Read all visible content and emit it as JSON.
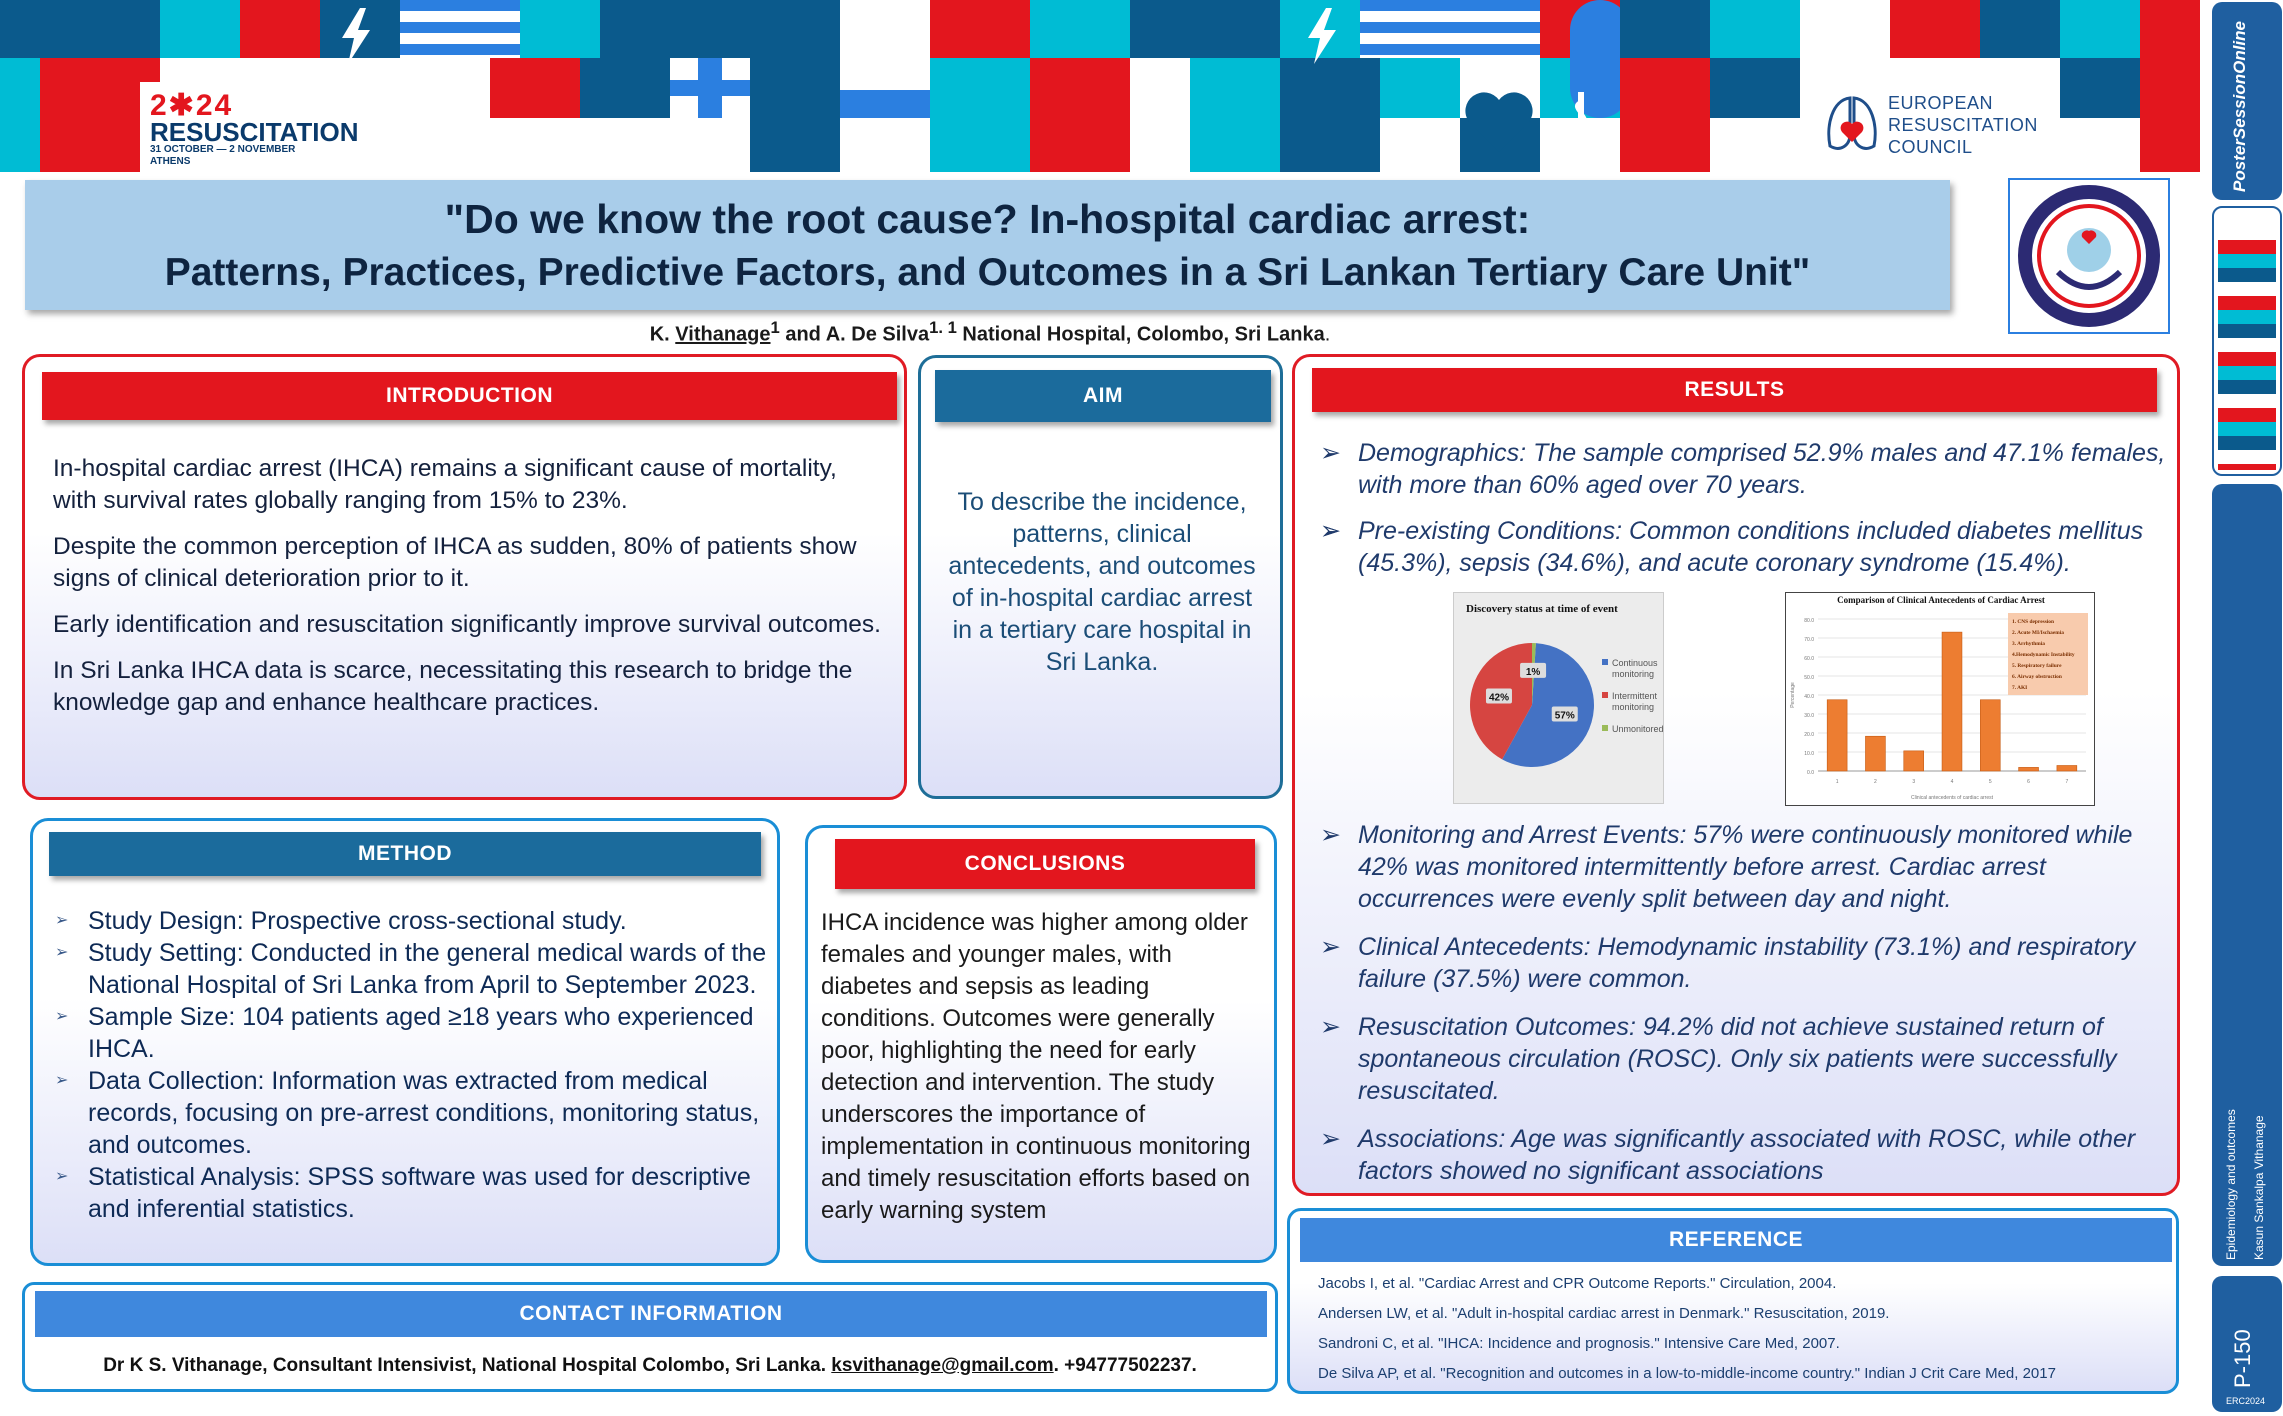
{
  "banner": {
    "year": "2✱24",
    "event": "RESUSCITATION",
    "dates": "31 OCTOBER — 2 NOVEMBER",
    "city": "ATHENS",
    "erc_lines": [
      "EUROPEAN",
      "RESUSCITATION",
      "COUNCIL"
    ]
  },
  "title": {
    "line1": "\"Do we know the root cause? In-hospital cardiac arrest:",
    "line2": "Patterns, Practices, Predictive Factors, and Outcomes in a Sri Lankan Tertiary Care Unit\""
  },
  "authors": {
    "a1": "K. ",
    "a1_name": "Vithanage",
    "a1_sup": "1",
    "mid": " and A. De Silva",
    "a2_sup": "1. ",
    "aff_sup": "1",
    "aff": " National Hospital, Colombo, Sri Lanka",
    "end": "."
  },
  "intro": {
    "header": "INTRODUCTION",
    "paras": [
      "In-hospital cardiac arrest (IHCA) remains a significant cause of mortality, with survival rates globally ranging from 15% to 23%.",
      "Despite the common perception of IHCA as sudden, 80% of patients show signs of clinical deterioration prior to it.",
      "Early identification and resuscitation significantly improve survival outcomes.",
      "In Sri Lanka IHCA data is scarce, necessitating this research to bridge the knowledge gap and enhance healthcare practices."
    ]
  },
  "aim": {
    "header": "AIM",
    "text": "To describe the incidence, patterns, clinical antecedents, and outcomes of in-hospital cardiac arrest in a tertiary care hospital in Sri Lanka."
  },
  "method": {
    "header": "METHOD",
    "items": [
      "Study Design: Prospective cross-sectional study.",
      "Study Setting: Conducted in the general medical wards of the National Hospital of Sri Lanka from April to September 2023.",
      "Sample Size: 104 patients aged ≥18 years who experienced IHCA.",
      "Data Collection: Information was extracted from medical records, focusing on pre-arrest conditions, monitoring status, and outcomes.",
      "Statistical Analysis: SPSS software was used for descriptive and inferential statistics."
    ]
  },
  "conclusions": {
    "header": "CONCLUSIONS",
    "text": "IHCA incidence was higher among older females and younger males, with diabetes and sepsis as leading conditions. Outcomes were generally poor, highlighting the need for early detection and intervention. The study underscores the importance of implementation in continuous monitoring and timely resuscitation efforts based on early warning system"
  },
  "results": {
    "header": "RESULTS",
    "items": [
      "Demographics: The sample comprised 52.9% males and 47.1% females, with more than 60% aged over 70 years.",
      "Pre-existing Conditions: Common conditions included diabetes mellitus (45.3%), sepsis (34.6%), and acute coronary syndrome (15.4%).",
      "Monitoring and Arrest Events: 57% were continuously monitored while 42% was monitored intermittently before arrest. Cardiac arrest occurrences were evenly split between day and night.",
      "Clinical Antecedents: Hemodynamic instability (73.1%) and respiratory failure (37.5%) were common.",
      "Resuscitation Outcomes: 94.2% did not achieve sustained return of spontaneous circulation (ROSC). Only six patients were successfully resuscitated.",
      "Associations: Age was significantly associated with ROSC, while other factors showed no significant associations"
    ],
    "marker": "➢"
  },
  "reference": {
    "header": "REFERENCE",
    "items": [
      "Jacobs I, et al. \"Cardiac Arrest and CPR Outcome Reports.\" Circulation, 2004.",
      "Andersen LW, et al. \"Adult in-hospital cardiac arrest in Denmark.\" Resuscitation, 2019.",
      "Sandroni C, et al. \"IHCA: Incidence and prognosis.\" Intensive Care Med, 2007.",
      "De Silva AP, et al. \"Recognition and outcomes in a low-to-middle-income country.\" Indian J Crit Care Med, 2017"
    ]
  },
  "contact": {
    "header": "CONTACT INFORMATION",
    "pre": "Dr K S. Vithanage, Consultant Intensivist, National Hospital Colombo, Sri Lanka. ",
    "email": "ksvithanage@gmail.com",
    "post": ". +94777502237."
  },
  "side": {
    "brand": "PosterSessionOnline",
    "category": "Epidemiology and outcomes",
    "author": "Kasun Sankalpa Vithanage",
    "code": "P-150",
    "erc": "ERC2024"
  },
  "chart_data": [
    {
      "type": "pie",
      "title": "Discovery status at time of event",
      "categories": [
        "Continuous monitoring",
        "Intermittent monitoring",
        "Unmonitored"
      ],
      "values": [
        57,
        42,
        1
      ],
      "data_labels": [
        "57%",
        "42%",
        "1%"
      ],
      "colors": [
        "#4472c4",
        "#d64541",
        "#9bbb59"
      ],
      "legend": "right"
    },
    {
      "type": "bar",
      "title": "Comparison of Clinical Antecedents of Cardiac Arrest",
      "categories": [
        "1",
        "2",
        "3",
        "4",
        "5",
        "6",
        "7"
      ],
      "values": [
        37.5,
        18.3,
        10.6,
        73.1,
        37.5,
        1.9,
        2.9
      ],
      "ylabels": [
        "0.0",
        "10.0",
        "20.0",
        "30.0",
        "40.0",
        "50.0",
        "60.0",
        "70.0",
        "80.0"
      ],
      "ylim": [
        0,
        80
      ],
      "xlabel": "Clinical antecedents of cardiac arrest",
      "ylabel": "Percentage",
      "legend_items": [
        "1. CNS depression",
        "2. Acute MI/Ischaemia",
        "3. Arrhythmia",
        "4.Hemodynamic Instability",
        "5. Respiratory failure",
        "6. Airway obstruction",
        "7. AKI"
      ],
      "bar_color": "#ed7d31",
      "legend": "top-right"
    }
  ]
}
